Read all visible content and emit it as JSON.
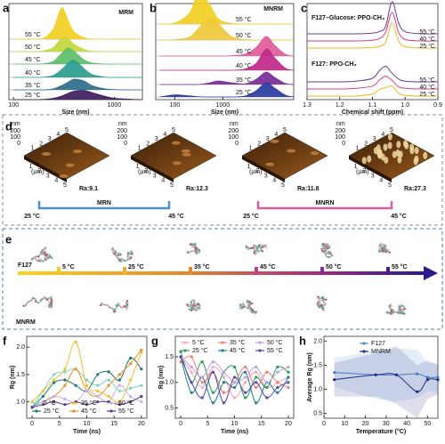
{
  "chart_data": [
    {
      "type": "ridge",
      "label": "a",
      "title": "MRM",
      "xlabel": "Size (nm)",
      "log": true,
      "xlim": [
        90,
        1900
      ],
      "xticks": [
        100,
        1000
      ],
      "ylim": [
        0,
        100
      ],
      "x": [
        100,
        150,
        200,
        250,
        300,
        350,
        400,
        500,
        600,
        800,
        1000,
        1500,
        1900
      ],
      "series": [
        {
          "name": "55 °C",
          "color": "#f2cf1f",
          "values": [
            0,
            0,
            3,
            30,
            88,
            50,
            20,
            4,
            0,
            0,
            0,
            0,
            0
          ]
        },
        {
          "name": "50 °C",
          "color": "#c4d83c",
          "values": [
            0,
            0,
            2,
            12,
            38,
            35,
            20,
            6,
            1,
            0,
            0,
            0,
            0
          ]
        },
        {
          "name": "45 °C",
          "color": "#5dbd6a",
          "values": [
            0,
            0,
            1,
            8,
            30,
            45,
            35,
            12,
            3,
            0,
            0,
            0,
            0
          ]
        },
        {
          "name": "40 °C",
          "color": "#2a9d8f",
          "values": [
            0,
            0,
            1,
            6,
            22,
            40,
            48,
            25,
            8,
            1,
            0,
            0,
            0
          ]
        },
        {
          "name": "35 °C",
          "color": "#2c6c8c",
          "values": [
            0,
            0,
            0,
            3,
            12,
            22,
            30,
            25,
            12,
            3,
            1,
            0,
            0
          ]
        },
        {
          "name": "25 °C",
          "color": "#3d1c5c",
          "values": [
            0,
            0,
            1,
            4,
            10,
            18,
            24,
            26,
            20,
            10,
            4,
            1,
            0
          ]
        }
      ]
    },
    {
      "type": "ridge",
      "label": "b",
      "title": "MNRM",
      "xlabel": "Size (nm)",
      "log": true,
      "xlim": [
        40,
        30000
      ],
      "xticks": [
        100,
        1000
      ],
      "ylim": [
        0,
        100
      ],
      "x": [
        50,
        100,
        200,
        300,
        500,
        800,
        1500,
        3000,
        5000,
        8000,
        12000,
        20000,
        30000
      ],
      "series": [
        {
          "name": "55 °C",
          "color": "#f2cf1f",
          "values": [
            0,
            3,
            30,
            80,
            60,
            15,
            2,
            0,
            0,
            0,
            0,
            0,
            0
          ]
        },
        {
          "name": "50 °C",
          "color": "#f0c83a",
          "values": [
            0,
            1,
            8,
            30,
            60,
            45,
            10,
            1,
            0,
            0,
            0,
            0,
            0
          ]
        },
        {
          "name": "45 °C",
          "color": "#e05a9a",
          "values": [
            0,
            0,
            0,
            0,
            0,
            0,
            1,
            6,
            25,
            55,
            30,
            5,
            0
          ]
        },
        {
          "name": "40 °C",
          "color": "#c0288a",
          "values": [
            0,
            0,
            0,
            0,
            0,
            0,
            0,
            4,
            20,
            60,
            35,
            6,
            0
          ]
        },
        {
          "name": "35 °C",
          "color": "#7a2a9a",
          "values": [
            0,
            0,
            0,
            0,
            4,
            10,
            5,
            2,
            15,
            35,
            20,
            3,
            0
          ]
        },
        {
          "name": "25 °C",
          "color": "#2a3aa0",
          "values": [
            0,
            6,
            3,
            1,
            0,
            0,
            0,
            3,
            18,
            40,
            25,
            5,
            0
          ]
        }
      ]
    },
    {
      "type": "nmr",
      "label": "c",
      "xlabel": "Chemical shift (ppm)",
      "xlim": [
        1.3,
        0.9
      ],
      "xticks": [
        1.3,
        1.2,
        1.1,
        {
          "value": 1,
          "label": "1.0"
        },
        0.9
      ],
      "ylim": [
        0,
        50
      ],
      "x": [
        1.3,
        1.2,
        1.15,
        1.1,
        1.08,
        1.06,
        1.04,
        1.02,
        1.0,
        0.95,
        0.9
      ],
      "groups": [
        {
          "name": "F127–Glucose: PPO-CH₃",
          "series": [
            {
              "name": "55 °C",
              "color": "#6a3d9a",
              "values": [
                0,
                0,
                0,
                1,
                3,
                10,
                45,
                15,
                3,
                0,
                0
              ]
            },
            {
              "name": "40 °C",
              "color": "#d43f8d",
              "values": [
                0,
                0,
                0,
                1,
                3,
                12,
                40,
                12,
                2,
                0,
                0
              ]
            },
            {
              "name": "25 °C",
              "color": "#e8b820",
              "values": [
                0,
                0,
                0,
                1,
                2,
                8,
                35,
                10,
                2,
                0,
                0
              ]
            }
          ]
        },
        {
          "name": "F127: PPO-CH₃",
          "series": [
            {
              "name": "55 °C",
              "color": "#6a3d9a",
              "values": [
                0,
                0,
                1,
                5,
                15,
                22,
                12,
                4,
                1,
                0,
                0
              ]
            },
            {
              "name": "40 °C",
              "color": "#d43f8d",
              "values": [
                0,
                0,
                1,
                4,
                12,
                18,
                12,
                3,
                1,
                0,
                0
              ]
            },
            {
              "name": "25 °C",
              "color": "#e8b820",
              "values": [
                0,
                0,
                0,
                3,
                9,
                12,
                14,
                4,
                1,
                0,
                0
              ]
            }
          ]
        }
      ]
    },
    {
      "type": "line",
      "label": "f",
      "xlabel": "Time (ns)",
      "ylabel": "Rg (nm)",
      "x": [
        0,
        2,
        4,
        6,
        8,
        10,
        12,
        14,
        16,
        18,
        20
      ],
      "xlim": [
        -1,
        21
      ],
      "xticks": [
        0,
        5,
        10,
        15,
        20
      ],
      "ylim": [
        0.7,
        2.2
      ],
      "yticks": [
        {
          "value": 1,
          "label": "1.0"
        },
        1.5,
        {
          "value": 2,
          "label": "2.0"
        }
      ],
      "legend": "lower left",
      "series": [
        {
          "name": "5 °C",
          "color": "#7fd1c7",
          "values": [
            0.9,
            1.2,
            1.5,
            1.55,
            1.6,
            1.4,
            1.3,
            1.4,
            1.2,
            1.25,
            1.3
          ]
        },
        {
          "name": "25 °C",
          "color": "#1a7a6e",
          "values": [
            0.9,
            1.1,
            1.35,
            1.4,
            1.3,
            1.2,
            1.5,
            1.55,
            1.4,
            1.8,
            1.6
          ]
        },
        {
          "name": "35 °C",
          "color": "#f0c030",
          "values": [
            1.0,
            1.2,
            1.4,
            1.6,
            2.1,
            1.3,
            1.2,
            1.1,
            1.0,
            1.4,
            1.9
          ]
        },
        {
          "name": "45 °C",
          "color": "#e8922a",
          "values": [
            0.9,
            1.0,
            1.1,
            1.3,
            1.6,
            1.2,
            1.1,
            1.3,
            1.5,
            1.7,
            1.95
          ]
        },
        {
          "name": "50 °C",
          "color": "#c9b0e0",
          "values": [
            0.9,
            1.0,
            1.1,
            1.05,
            1.0,
            1.2,
            1.1,
            1.0,
            1.3,
            1.1,
            1.0
          ]
        },
        {
          "name": "55 °C",
          "color": "#5a3a8a",
          "values": [
            0.9,
            0.95,
            1.0,
            0.95,
            1.0,
            0.95,
            1.0,
            1.0,
            0.95,
            1.0,
            1.1
          ]
        }
      ]
    },
    {
      "type": "line",
      "label": "g",
      "xlabel": "Time (ns)",
      "ylabel": "Rg (nm)",
      "x": [
        0,
        2,
        4,
        6,
        8,
        10,
        12,
        14,
        16,
        18,
        20
      ],
      "xlim": [
        -1,
        21
      ],
      "xticks": [
        0,
        5,
        10,
        15,
        20
      ],
      "ylim": [
        0.3,
        1.9
      ],
      "yticks": [
        0.5,
        {
          "value": 1,
          "label": "1.0"
        },
        1.5
      ],
      "legend": "upper left",
      "series": [
        {
          "name": "5 °C",
          "color": "#f4a6c0",
          "values": [
            1.5,
            1.2,
            0.9,
            1.3,
            1.1,
            0.7,
            1.0,
            1.2,
            0.9,
            1.0,
            1.1
          ]
        },
        {
          "name": "25 °C",
          "color": "#2e9e5a",
          "values": [
            1.6,
            1.0,
            1.4,
            0.8,
            1.2,
            1.3,
            0.7,
            1.1,
            0.9,
            1.3,
            1.2
          ]
        },
        {
          "name": "35 °C",
          "color": "#f08070",
          "values": [
            1.4,
            1.5,
            1.0,
            1.2,
            0.8,
            1.0,
            1.3,
            0.9,
            1.2,
            1.0,
            0.9
          ]
        },
        {
          "name": "45 °C",
          "color": "#1f7f8f",
          "values": [
            1.5,
            0.8,
            1.1,
            0.6,
            1.0,
            0.9,
            1.2,
            0.6,
            1.0,
            0.8,
            1.1
          ]
        },
        {
          "name": "50 °C",
          "color": "#c0a0e0",
          "values": [
            1.5,
            1.3,
            1.1,
            1.4,
            1.2,
            1.0,
            1.1,
            1.3,
            1.0,
            1.2,
            1.3
          ]
        },
        {
          "name": "55 °C",
          "color": "#5a4ab0",
          "values": [
            1.5,
            1.0,
            0.7,
            1.2,
            0.6,
            1.1,
            0.8,
            1.0,
            0.7,
            0.9,
            1.0
          ]
        }
      ]
    },
    {
      "type": "line",
      "label": "h",
      "xlabel": "Temperature (°C)",
      "ylabel": "Average Rg (nm)",
      "x": [
        5,
        25,
        35,
        45,
        50,
        55
      ],
      "xlim": [
        0,
        55
      ],
      "xticks": [
        0,
        10,
        20,
        30,
        40,
        50
      ],
      "ylim": [
        0.4,
        2.1
      ],
      "yticks": [
        0.5,
        {
          "value": 1,
          "label": "1.0"
        },
        1.5,
        {
          "value": 2,
          "label": "2.0"
        }
      ],
      "legend": "upper center",
      "series": [
        {
          "name": "F127",
          "color": "#4a8fd0",
          "values": [
            1.35,
            1.3,
            1.3,
            1.32,
            1.25,
            1.25
          ],
          "errors": [
            0.3,
            0.5,
            0.55,
            0.5,
            0.3,
            0.3
          ]
        },
        {
          "name": "MNRM",
          "color": "#1f2a80",
          "values": [
            1.2,
            1.3,
            1.3,
            0.95,
            1.2,
            1.2
          ],
          "errors": [
            0.35,
            0.45,
            0.6,
            0.55,
            0.4,
            0.3
          ]
        }
      ]
    }
  ],
  "afm": {
    "label": "d",
    "images": [
      {
        "ra": "Ra:9.1"
      },
      {
        "ra": "Ra:12.3"
      },
      {
        "ra": "Ra:11.8"
      },
      {
        "ra": "Ra:27.3"
      }
    ],
    "z_unit": "nm",
    "z_ticks": [
      "200",
      "100",
      "0"
    ],
    "xy_unit": "(µm)",
    "xy_ticks": [
      "1",
      "2",
      "3",
      "4",
      "5"
    ],
    "groups": [
      {
        "name": "MRN",
        "start": "25 °C",
        "end": "45 °C"
      },
      {
        "name": "MNRN",
        "start": "25 °C",
        "end": "45 °C"
      }
    ]
  },
  "md": {
    "label": "e",
    "top": "F127",
    "bottom": "MNRM",
    "temperatures": [
      "5 °C",
      "25 °C",
      "35 °C",
      "45 °C",
      "50 °C",
      "55 °C"
    ]
  }
}
